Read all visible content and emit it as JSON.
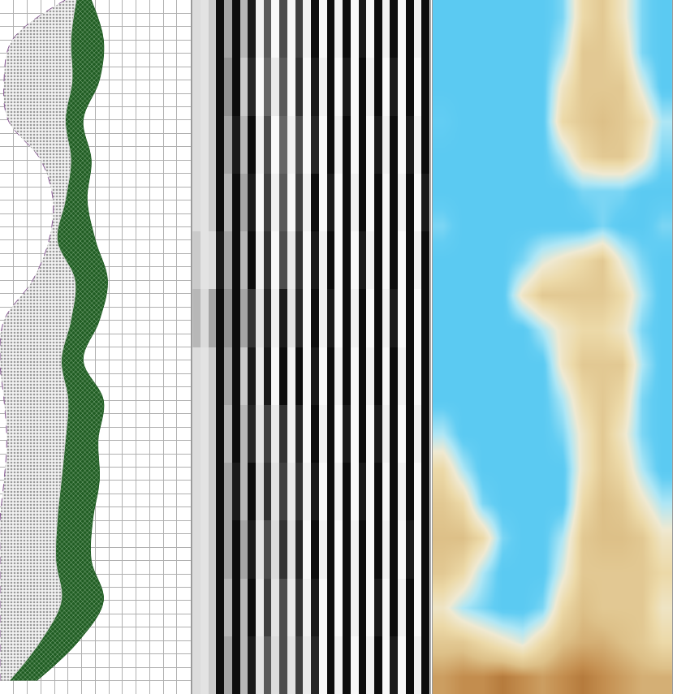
{
  "chart_data": [
    {
      "type": "area",
      "depth": [
        0,
        3,
        6,
        9,
        12,
        15,
        18,
        21,
        24,
        27,
        30,
        33,
        36,
        39,
        42,
        45,
        48,
        51
      ],
      "series": [
        {
          "color": "#8a5a96",
          "line_style": "dashed",
          "values": [
            4.8,
            0.9,
            0.3,
            0.6,
            3.0,
            3.9,
            3.6,
            2.4,
            0.3,
            0,
            0.3,
            0.5,
            0.3,
            0,
            0,
            0,
            0,
            0
          ]
        },
        {
          "color": "#d6d6d6",
          "line_style": "solid",
          "values": [
            5.6,
            5.2,
            5.3,
            4.8,
            5.2,
            4.8,
            4.2,
            5.5,
            5.2,
            4.5,
            5.0,
            4.8,
            4.5,
            4.2,
            4.1,
            4.5,
            3.0,
            0.7
          ]
        },
        {
          "color": "#1f5c22",
          "line_style": "solid",
          "values": [
            6.7,
            7.6,
            7.3,
            6.1,
            6.7,
            6.4,
            7.0,
            7.9,
            7.3,
            6.1,
            7.6,
            7.2,
            7.3,
            6.8,
            6.7,
            7.6,
            5.8,
            2.7
          ]
        }
      ],
      "xlim": [
        0,
        14
      ],
      "xticks": [
        0,
        1,
        2,
        3,
        4,
        5,
        6,
        7,
        8,
        9,
        10,
        11,
        12,
        13,
        14
      ],
      "ylim": [
        52,
        0
      ],
      "yticks": [
        0,
        1,
        2,
        3,
        4,
        5,
        6,
        7,
        8,
        9,
        10,
        11,
        12,
        13,
        14,
        15,
        16,
        17,
        18,
        19,
        20,
        21,
        22,
        23,
        24,
        25,
        26,
        27,
        28,
        29,
        30,
        31,
        32,
        33,
        34,
        35,
        36,
        37,
        38,
        39,
        40,
        41,
        42,
        43,
        44,
        45,
        46,
        47,
        48,
        49,
        50,
        51,
        52
      ],
      "grid": true,
      "tick_labels": false
    },
    {
      "type": "heatmap",
      "z": [
        [
          0.5,
          0.6,
          0.4,
          -0.9,
          0.2,
          -0.9,
          0.3,
          -0.8,
          0.8,
          -0.3,
          0.9,
          -0.4,
          0.9,
          -0.5,
          0.8,
          -0.9,
          0.9,
          -0.9,
          0.8,
          -0.9,
          0.9,
          -0.8,
          0.9,
          -0.9,
          0.8,
          -0.9,
          0.9,
          -0.9,
          0.8,
          -0.9
        ],
        [
          0.5,
          0.6,
          0.4,
          -0.9,
          0.1,
          -0.9,
          0.4,
          -0.7,
          0.9,
          -0.2,
          0.7,
          -0.3,
          0.9,
          -0.6,
          0.9,
          -0.8,
          0.8,
          -0.9,
          0.9,
          -0.8,
          0.9,
          -0.9,
          0.8,
          -0.9,
          0.9,
          -0.8,
          0.9,
          -0.9,
          0.9,
          -0.9
        ],
        [
          0.5,
          0.6,
          0.4,
          -0.9,
          0.2,
          -0.8,
          0.3,
          -0.9,
          0.8,
          -0.4,
          0.9,
          -0.2,
          0.8,
          -0.4,
          0.9,
          -0.7,
          0.9,
          -0.9,
          0.8,
          -0.9,
          0.9,
          -0.9,
          0.9,
          -0.8,
          0.8,
          -0.9,
          0.9,
          -0.8,
          0.8,
          -0.9
        ],
        [
          0.5,
          0.6,
          0.4,
          -0.9,
          0.3,
          -0.9,
          0.2,
          -0.8,
          0.9,
          -0.5,
          0.8,
          -0.3,
          0.9,
          -0.5,
          0.8,
          -0.9,
          0.9,
          -0.8,
          0.9,
          -0.9,
          0.8,
          -0.9,
          0.9,
          -0.9,
          0.9,
          -0.9,
          0.8,
          -0.9,
          0.9,
          -0.8
        ],
        [
          0.4,
          0.6,
          0.5,
          -0.8,
          0.2,
          -0.9,
          0.3,
          -0.9,
          0.8,
          -0.6,
          0.9,
          -0.4,
          0.7,
          -0.6,
          0.9,
          -0.8,
          0.8,
          -0.9,
          0.9,
          -0.9,
          0.9,
          -0.8,
          0.8,
          -0.9,
          0.9,
          -0.9,
          0.9,
          -0.9,
          0.8,
          -0.9
        ],
        [
          0.3,
          0.5,
          0.2,
          -0.9,
          0.1,
          -0.9,
          0.2,
          -0.6,
          0.6,
          -0.7,
          0.8,
          -0.8,
          0.6,
          -0.7,
          0.9,
          -0.9,
          0.8,
          -0.8,
          0.9,
          -0.9,
          0.8,
          -0.9,
          0.9,
          -0.9,
          0.8,
          -0.8,
          0.9,
          -0.9,
          0.9,
          -0.9
        ],
        [
          0.5,
          0.6,
          0.4,
          -0.9,
          0.2,
          -0.9,
          0.4,
          -0.8,
          0.7,
          -0.8,
          0.9,
          -0.9,
          0.8,
          -0.9,
          0.9,
          -0.8,
          0.9,
          -0.9,
          0.8,
          -0.9,
          0.9,
          -0.9,
          0.8,
          -0.9,
          0.9,
          -0.9,
          0.8,
          -0.9,
          0.9,
          -0.9
        ],
        [
          0.5,
          0.6,
          0.4,
          -0.9,
          0.3,
          -0.9,
          0.3,
          -0.7,
          0.6,
          -0.5,
          0.7,
          -0.6,
          0.8,
          -0.7,
          0.9,
          -0.9,
          0.8,
          -0.9,
          0.9,
          -0.8,
          0.9,
          -0.9,
          0.9,
          -0.8,
          0.8,
          -0.9,
          0.9,
          -0.9,
          0.8,
          -0.9
        ],
        [
          0.5,
          0.6,
          0.4,
          -0.9,
          0.2,
          -0.8,
          0.3,
          -0.9,
          0.5,
          -0.6,
          0.6,
          -0.5,
          0.7,
          -0.6,
          0.8,
          -0.8,
          0.9,
          -0.9,
          0.8,
          -0.9,
          0.9,
          -0.8,
          0.9,
          -0.9,
          0.9,
          -0.9,
          0.8,
          -0.9,
          0.9,
          -0.9
        ],
        [
          0.5,
          0.6,
          0.4,
          -0.9,
          0.2,
          -0.9,
          0.2,
          -0.8,
          0.6,
          -0.4,
          0.5,
          -0.6,
          0.6,
          -0.7,
          0.9,
          -0.9,
          0.8,
          -0.9,
          0.9,
          -0.9,
          0.8,
          -0.9,
          0.9,
          -0.9,
          0.8,
          -0.9,
          0.9,
          -0.8,
          0.9,
          -0.9
        ],
        [
          0.5,
          0.6,
          0.4,
          -0.9,
          0.3,
          -0.9,
          0.3,
          -0.9,
          0.7,
          -0.5,
          0.6,
          -0.4,
          0.7,
          -0.6,
          0.8,
          -0.8,
          0.9,
          -0.9,
          0.9,
          -0.9,
          0.8,
          -0.9,
          0.9,
          -0.8,
          0.9,
          -0.9,
          0.8,
          -0.9,
          0.9,
          -0.9
        ],
        [
          0.5,
          0.6,
          0.4,
          -0.9,
          0.2,
          -0.9,
          0.3,
          -0.8,
          0.6,
          -0.3,
          0.5,
          -0.4,
          0.6,
          -0.5,
          0.7,
          -0.7,
          0.9,
          -0.9,
          0.8,
          -0.9,
          0.9,
          -0.9,
          0.8,
          -0.9,
          0.9,
          -0.8,
          0.9,
          -0.9,
          0.8,
          -0.9
        ]
      ],
      "zlim": [
        -1,
        1
      ],
      "xlim": [
        -0.5,
        29.5
      ],
      "ylim": [
        11.5,
        -0.5
      ],
      "tick_labels": false
    },
    {
      "type": "heatmap",
      "z": [
        [
          0.1,
          0.1,
          0.1,
          0.1,
          0.1,
          0.1,
          0.2,
          0.6,
          0.7,
          0.5,
          0.2,
          0.1
        ],
        [
          0.1,
          0.1,
          0.1,
          0.1,
          0.1,
          0.1,
          0.3,
          0.7,
          0.7,
          0.6,
          0.2,
          0.1
        ],
        [
          0.1,
          0.1,
          0.1,
          0.1,
          0.1,
          0.1,
          0.5,
          0.7,
          0.7,
          0.7,
          0.4,
          0.1
        ],
        [
          0.15,
          0.1,
          0.1,
          0.1,
          0.1,
          0.1,
          0.6,
          0.7,
          0.75,
          0.7,
          0.6,
          0.3
        ],
        [
          0.1,
          0.1,
          0.1,
          0.1,
          0.1,
          0.1,
          0.3,
          0.6,
          0.7,
          0.7,
          0.5,
          0.2
        ],
        [
          0.1,
          0.1,
          0.1,
          0.1,
          0.1,
          0.1,
          0.1,
          0.2,
          0.2,
          0.2,
          0.1,
          0.1
        ],
        [
          0.2,
          0.1,
          0.1,
          0.1,
          0.1,
          0.1,
          0.1,
          0.1,
          0.2,
          0.1,
          0.1,
          0.2
        ],
        [
          0.1,
          0.1,
          0.1,
          0.1,
          0.2,
          0.4,
          0.5,
          0.6,
          0.7,
          0.4,
          0.2,
          0.1
        ],
        [
          0.1,
          0.1,
          0.1,
          0.1,
          0.5,
          0.7,
          0.7,
          0.7,
          0.7,
          0.6,
          0.3,
          0.1
        ],
        [
          0.1,
          0.1,
          0.1,
          0.1,
          0.1,
          0.3,
          0.5,
          0.6,
          0.6,
          0.5,
          0.2,
          0.1
        ],
        [
          0.1,
          0.1,
          0.1,
          0.1,
          0.1,
          0.1,
          0.5,
          0.7,
          0.7,
          0.7,
          0.3,
          0.1
        ],
        [
          0.1,
          0.1,
          0.1,
          0.1,
          0.1,
          0.1,
          0.3,
          0.6,
          0.7,
          0.6,
          0.2,
          0.1
        ],
        [
          0.3,
          0.1,
          0.1,
          0.1,
          0.1,
          0.1,
          0.2,
          0.5,
          0.7,
          0.5,
          0.2,
          0.1
        ],
        [
          0.6,
          0.3,
          0.1,
          0.1,
          0.1,
          0.1,
          0.1,
          0.5,
          0.7,
          0.6,
          0.3,
          0.1
        ],
        [
          0.7,
          0.6,
          0.2,
          0.1,
          0.1,
          0.1,
          0.1,
          0.6,
          0.75,
          0.7,
          0.5,
          0.3
        ],
        [
          0.75,
          0.75,
          0.6,
          0.2,
          0.1,
          0.1,
          0.3,
          0.7,
          0.75,
          0.75,
          0.7,
          0.5
        ],
        [
          0.7,
          0.6,
          0.3,
          0.1,
          0.1,
          0.1,
          0.4,
          0.7,
          0.7,
          0.7,
          0.7,
          0.6
        ],
        [
          0.5,
          0.3,
          0.2,
          0.1,
          0.1,
          0.2,
          0.6,
          0.75,
          0.7,
          0.7,
          0.7,
          0.5
        ],
        [
          0.7,
          0.7,
          0.6,
          0.5,
          0.4,
          0.6,
          0.75,
          0.8,
          0.8,
          0.75,
          0.7,
          0.6
        ],
        [
          0.85,
          0.9,
          0.9,
          0.95,
          0.9,
          0.85,
          0.9,
          0.95,
          0.9,
          0.85,
          0.8,
          0.8
        ]
      ],
      "zlim": [
        0,
        1
      ],
      "xlim": [
        -0.5,
        11.5
      ],
      "ylim": [
        19.5,
        -0.5
      ],
      "tick_labels": false
    }
  ]
}
